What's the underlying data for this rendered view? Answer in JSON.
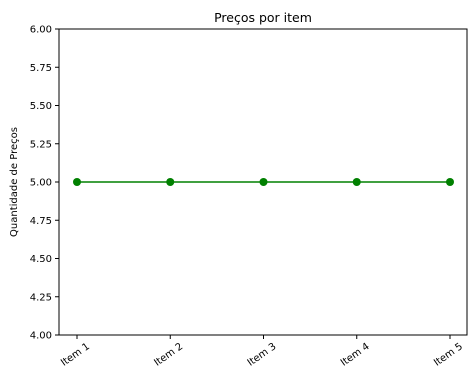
{
  "chart_data": {
    "type": "line",
    "title": "Preços por item",
    "xlabel": "",
    "ylabel": "Quantidade de Preços",
    "categories": [
      "Item 1",
      "Item 2",
      "Item 3",
      "Item 4",
      "Item 5"
    ],
    "series": [
      {
        "values": [
          5.0,
          5.0,
          5.0,
          5.0,
          5.0
        ],
        "color": "#008000",
        "marker": "circle"
      }
    ],
    "ylim": [
      4.0,
      6.0
    ],
    "yticks": [
      4.0,
      4.25,
      4.5,
      4.75,
      5.0,
      5.25,
      5.5,
      5.75,
      6.0
    ],
    "ytick_labels": [
      "4.00",
      "4.25",
      "4.50",
      "4.75",
      "5.00",
      "5.25",
      "5.50",
      "5.75",
      "6.00"
    ],
    "grid": false,
    "legend": "none",
    "spines": [
      "left",
      "bottom",
      "top",
      "right"
    ]
  }
}
